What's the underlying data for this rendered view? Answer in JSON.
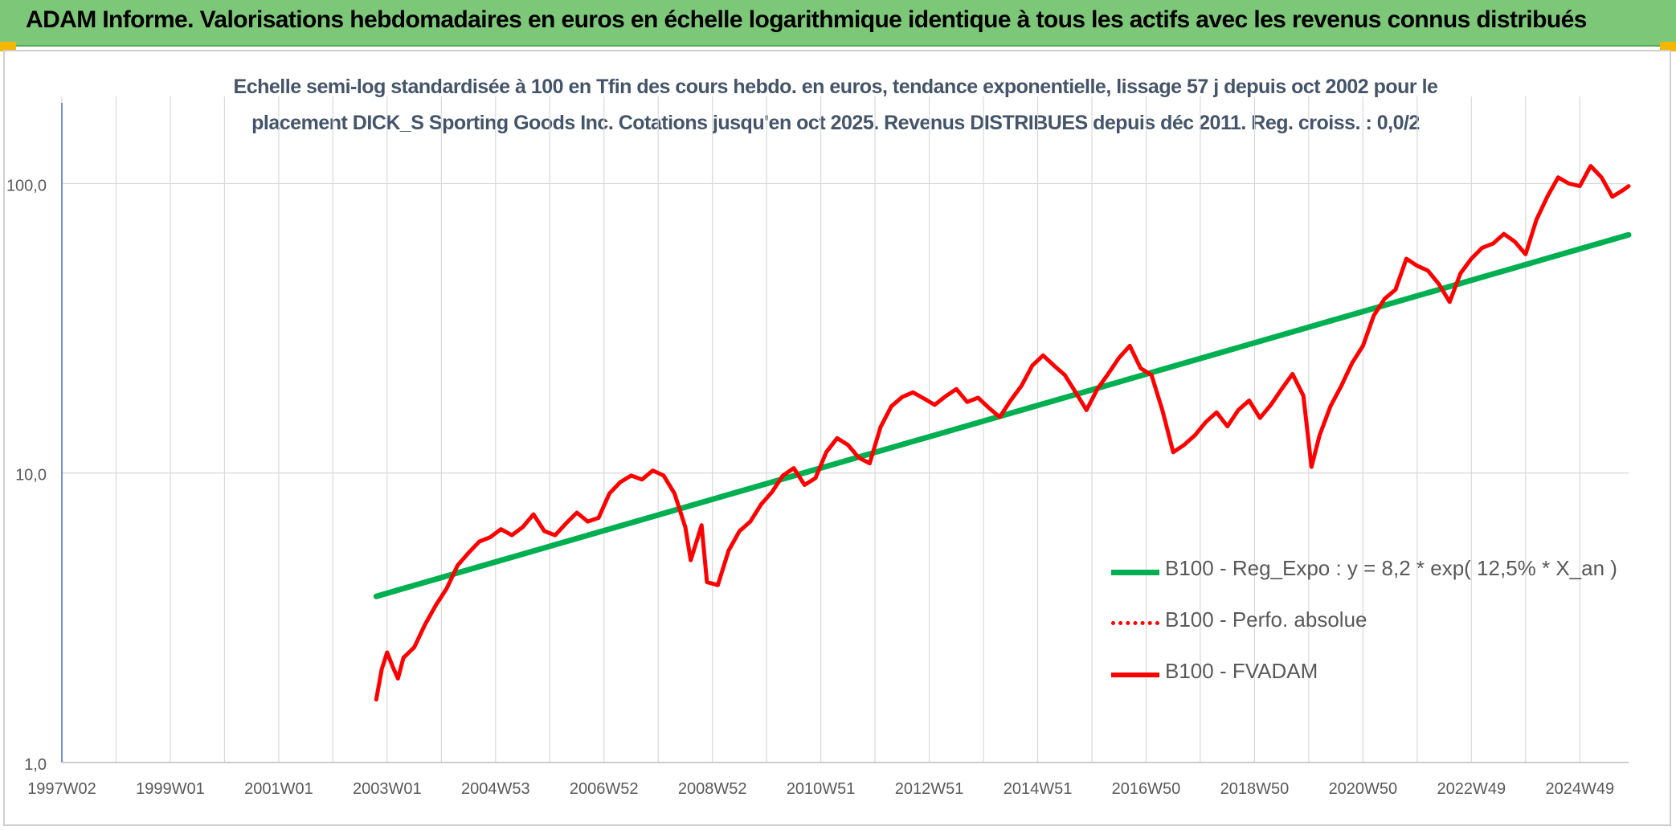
{
  "header": {
    "title": "ADAM Informe. Valorisations hebdomadaires en euros en échelle logarithmique identique à tous les actifs avec les revenus connus distribués"
  },
  "colors": {
    "banner": "#7dc878",
    "trend": "#00b050",
    "price": "#ff0000",
    "title_text": "#44546a",
    "grid": "#d9d9d9"
  },
  "chart_data": {
    "type": "line",
    "title_lines": [
      "Echelle semi-log standardisée à 100 en Tfin des cours hebdo. en euros, tendance exponentielle, lissage 57 j depuis oct 2002 pour le",
      "placement DICK_S Sporting Goods Inc. Cotations jusqu'en oct 2025. Revenus DISTRIBUES depuis déc 2011. Reg. croiss. : 0,0/2"
    ],
    "y_scale": "log",
    "ylim": [
      1,
      200
    ],
    "y_ticks": [
      {
        "value": 1,
        "label": "1,0"
      },
      {
        "value": 10,
        "label": "10,0"
      },
      {
        "value": 100,
        "label": "100,0"
      }
    ],
    "xlim": [
      1997.0,
      2025.9
    ],
    "x_ticks": [
      {
        "value": 1997.0,
        "label": "1997W02"
      },
      {
        "value": 1999.0,
        "label": "1999W01"
      },
      {
        "value": 2001.0,
        "label": "2001W01"
      },
      {
        "value": 2003.0,
        "label": "2003W01"
      },
      {
        "value": 2005.0,
        "label": "2004W53"
      },
      {
        "value": 2007.0,
        "label": "2006W52"
      },
      {
        "value": 2009.0,
        "label": "2008W52"
      },
      {
        "value": 2011.0,
        "label": "2010W51"
      },
      {
        "value": 2013.0,
        "label": "2012W51"
      },
      {
        "value": 2015.0,
        "label": "2014W51"
      },
      {
        "value": 2017.0,
        "label": "2016W50"
      },
      {
        "value": 2019.0,
        "label": "2018W50"
      },
      {
        "value": 2021.0,
        "label": "2020W50"
      },
      {
        "value": 2023.0,
        "label": "2022W49"
      },
      {
        "value": 2025.0,
        "label": "2024W49"
      }
    ],
    "x_gridlines": [
      1997.0,
      1998.0,
      1999.0,
      2000.0,
      2001.0,
      2002.0,
      2003.0,
      2004.0,
      2005.0,
      2006.0,
      2007.0,
      2008.0,
      2009.0,
      2010.0,
      2011.0,
      2012.0,
      2013.0,
      2014.0,
      2015.0,
      2016.0,
      2017.0,
      2018.0,
      2019.0,
      2020.0,
      2021.0,
      2022.0,
      2023.0,
      2024.0,
      2025.0
    ],
    "legend_position": "center-right",
    "series": [
      {
        "name": "B100 - Reg_Expo : y = 8,2 * exp( 12,5% *  X_an )",
        "style": "solid-green",
        "x": [
          2002.8,
          2025.9
        ],
        "y": [
          3.75,
          66.5
        ]
      },
      {
        "name": "B100 - Perfo. absolue",
        "style": "dotted-red",
        "x": [],
        "y": []
      },
      {
        "name": "B100 - FVADAM",
        "style": "solid-red",
        "x": [
          2002.8,
          2002.9,
          2003.0,
          2003.1,
          2003.2,
          2003.3,
          2003.5,
          2003.7,
          2003.9,
          2004.1,
          2004.3,
          2004.5,
          2004.7,
          2004.9,
          2005.1,
          2005.3,
          2005.5,
          2005.7,
          2005.9,
          2006.1,
          2006.3,
          2006.5,
          2006.7,
          2006.9,
          2007.1,
          2007.3,
          2007.5,
          2007.7,
          2007.9,
          2008.1,
          2008.3,
          2008.5,
          2008.6,
          2008.8,
          2008.9,
          2009.1,
          2009.3,
          2009.5,
          2009.7,
          2009.9,
          2010.1,
          2010.3,
          2010.5,
          2010.7,
          2010.9,
          2011.1,
          2011.3,
          2011.5,
          2011.7,
          2011.9,
          2012.1,
          2012.3,
          2012.5,
          2012.7,
          2012.9,
          2013.1,
          2013.3,
          2013.5,
          2013.7,
          2013.9,
          2014.1,
          2014.3,
          2014.5,
          2014.7,
          2014.9,
          2015.1,
          2015.3,
          2015.5,
          2015.7,
          2015.9,
          2016.1,
          2016.3,
          2016.5,
          2016.7,
          2016.9,
          2017.1,
          2017.3,
          2017.5,
          2017.7,
          2017.9,
          2018.1,
          2018.3,
          2018.5,
          2018.7,
          2018.9,
          2019.1,
          2019.3,
          2019.5,
          2019.7,
          2019.9,
          2020.05,
          2020.2,
          2020.4,
          2020.6,
          2020.8,
          2021.0,
          2021.2,
          2021.4,
          2021.6,
          2021.8,
          2022.0,
          2022.2,
          2022.4,
          2022.6,
          2022.8,
          2023.0,
          2023.2,
          2023.4,
          2023.6,
          2023.8,
          2024.0,
          2024.2,
          2024.4,
          2024.6,
          2024.8,
          2025.0,
          2025.2,
          2025.4,
          2025.6,
          2025.8,
          2025.9
        ],
        "y": [
          1.65,
          2.1,
          2.4,
          2.15,
          1.95,
          2.3,
          2.5,
          3.0,
          3.5,
          4.0,
          4.8,
          5.3,
          5.8,
          6.0,
          6.4,
          6.1,
          6.5,
          7.2,
          6.3,
          6.1,
          6.7,
          7.3,
          6.8,
          7.0,
          8.5,
          9.3,
          9.8,
          9.5,
          10.2,
          9.8,
          8.5,
          6.5,
          5.0,
          6.6,
          4.2,
          4.1,
          5.4,
          6.3,
          6.8,
          7.8,
          8.6,
          9.8,
          10.4,
          9.1,
          9.6,
          11.8,
          13.2,
          12.5,
          11.3,
          10.8,
          14.4,
          17.0,
          18.3,
          19.0,
          18.1,
          17.2,
          18.4,
          19.5,
          17.6,
          18.2,
          16.8,
          15.6,
          17.8,
          20.0,
          23.5,
          25.5,
          23.5,
          21.8,
          19.0,
          16.5,
          19.5,
          22.0,
          25.0,
          27.5,
          23.0,
          21.8,
          16.5,
          11.8,
          12.5,
          13.5,
          15.0,
          16.2,
          14.5,
          16.5,
          17.8,
          15.5,
          17.2,
          19.5,
          22.0,
          18.5,
          10.5,
          13.5,
          17.0,
          20.0,
          24.0,
          27.5,
          35.0,
          40.0,
          43.0,
          55.0,
          52.0,
          50.0,
          45.0,
          39.0,
          49.0,
          55.0,
          60.0,
          62.0,
          67.0,
          63.0,
          57.0,
          75.0,
          90.0,
          105.0,
          100.0,
          98.0,
          115.0,
          105.0,
          90.0,
          95.0,
          98.0
        ]
      }
    ]
  }
}
